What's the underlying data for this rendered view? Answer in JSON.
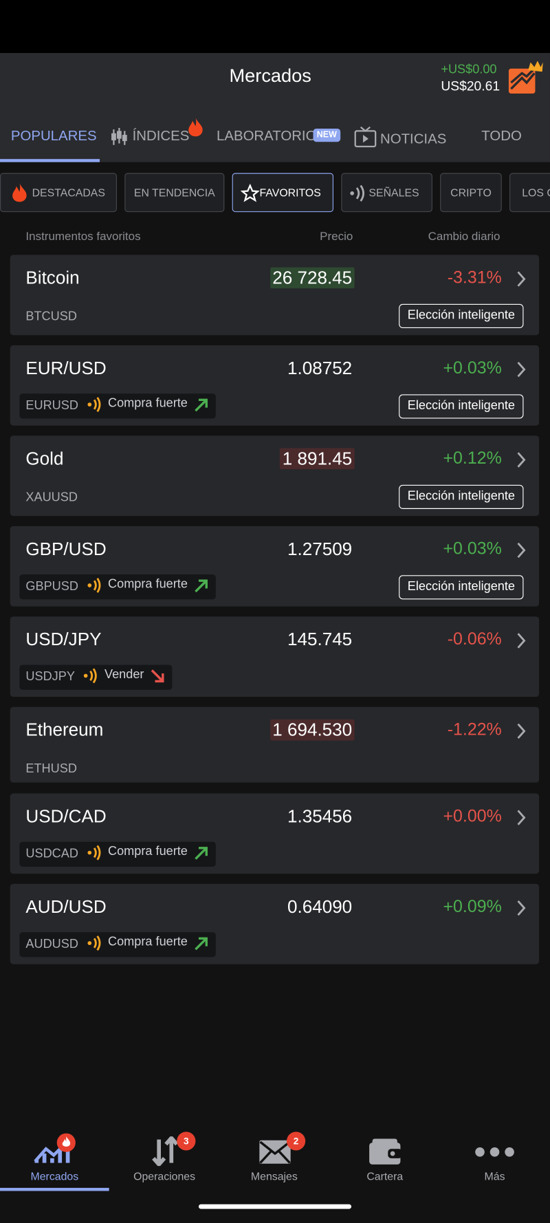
{
  "header": {
    "title": "Mercados",
    "balance_change": "+US$0.00",
    "balance": "US$20.61"
  },
  "tabs": [
    "POPULARES",
    "ÍNDICES",
    "LABORATORIO",
    "NOTICIAS",
    "TODO"
  ],
  "tab_badge": "NEW",
  "filters": [
    "DESTACADAS",
    "EN TENDENCIA",
    "FAVORITOS",
    "SEÑALES",
    "CRIPTO",
    "LOS C"
  ],
  "columns": [
    "Instrumentos favoritos",
    "Precio",
    "Cambio diario"
  ],
  "rows": [
    {
      "name": "Bitcoin",
      "symbol": "BTCUSD",
      "price": "26 728.45",
      "price_highlight": "#2e4a31",
      "change": "-3.31%",
      "change_color": "#e5534b",
      "smart": "Elección inteligente"
    },
    {
      "name": "EUR/USD",
      "symbol": "EURUSD",
      "price": "1.08752",
      "change": "+0.03%",
      "change_color": "#4caf50",
      "signal": "Compra fuerte",
      "trend": "up",
      "smart": "Elección inteligente"
    },
    {
      "name": "Gold",
      "symbol": "XAUUSD",
      "price": "1 891.45",
      "price_highlight": "#4b2a2c",
      "change": "+0.12%",
      "change_color": "#4caf50",
      "smart": "Elección inteligente"
    },
    {
      "name": "GBP/USD",
      "symbol": "GBPUSD",
      "price": "1.27509",
      "change": "+0.03%",
      "change_color": "#4caf50",
      "signal": "Compra fuerte",
      "trend": "up",
      "smart": "Elección inteligente"
    },
    {
      "name": "USD/JPY",
      "symbol": "USDJPY",
      "price": "145.745",
      "change": "-0.06%",
      "change_color": "#e5534b",
      "signal": "Vender",
      "trend": "down"
    },
    {
      "name": "Ethereum",
      "symbol": "ETHUSD",
      "price": "1 694.530",
      "price_highlight": "#4b2a2c",
      "change": "-1.22%",
      "change_color": "#e5534b"
    },
    {
      "name": "USD/CAD",
      "symbol": "USDCAD",
      "price": "1.35456",
      "change": "+0.00%",
      "change_color": "#e5534b",
      "signal": "Compra fuerte",
      "trend": "up"
    },
    {
      "name": "AUD/USD",
      "symbol": "AUDUSD",
      "price": "0.64090",
      "change": "+0.09%",
      "change_color": "#4caf50",
      "signal": "Compra fuerte",
      "trend": "up"
    }
  ],
  "nav": [
    {
      "label": "Mercados"
    },
    {
      "label": "Operaciones",
      "badge": "3"
    },
    {
      "label": "Mensajes",
      "badge": "2"
    },
    {
      "label": "Cartera"
    },
    {
      "label": "Más"
    }
  ]
}
